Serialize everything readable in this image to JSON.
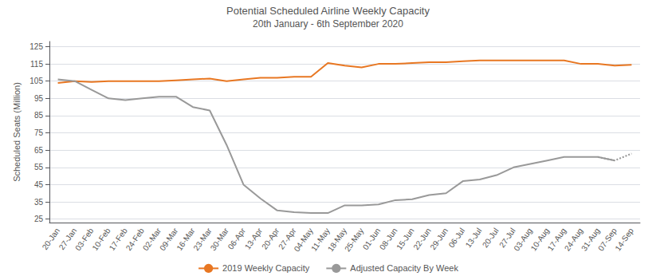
{
  "chart_data": {
    "type": "line",
    "title": "Potential Scheduled Airline Weekly Capacity",
    "subtitle": "20th January - 6th September 2020",
    "ylabel": "Scheduled Seats (Million)",
    "categories": [
      "20-Jan",
      "27-Jan",
      "03-Feb",
      "10-Feb",
      "17-Feb",
      "24-Feb",
      "02-Mar",
      "09-Mar",
      "16-Mar",
      "23-Mar",
      "30-Mar",
      "06-Apr",
      "13-Apr",
      "20-Apr",
      "27-Apr",
      "04-May",
      "11-May",
      "18-May",
      "25-May",
      "01-Jun",
      "08-Jun",
      "15-Jun",
      "22-Jun",
      "29-Jun",
      "06-Jul",
      "13-Jul",
      "20-Jul",
      "27-Jul",
      "03-Aug",
      "10-Aug",
      "17-Aug",
      "24-Aug",
      "31-Aug",
      "07-Sep",
      "14-Sep"
    ],
    "series": [
      {
        "name": "2019 Weekly Capacity",
        "color": "#E87722",
        "line_style": "solid",
        "values": [
          104,
          105,
          104.5,
          105,
          105,
          105,
          105,
          105.5,
          106,
          106.5,
          105,
          106,
          107,
          107,
          107.5,
          107.5,
          115.5,
          114,
          113,
          115,
          115,
          115.5,
          116,
          116,
          116.5,
          117,
          117,
          117,
          117,
          117,
          117,
          115,
          115,
          114,
          114.5
        ]
      },
      {
        "name": "Adjusted Capacity By Week",
        "color": "#999999",
        "line_style": "solid",
        "values": [
          106,
          105,
          100,
          95,
          94,
          95,
          96,
          96,
          90,
          88,
          68,
          45,
          37,
          30,
          29,
          28.5,
          28.5,
          33,
          33,
          33.5,
          36,
          36.5,
          39,
          40,
          47,
          48,
          50.5,
          55,
          57,
          59,
          61,
          61,
          61,
          59,
          null
        ]
      },
      {
        "color": "#999999",
        "line_style": "dotted",
        "values": [
          null,
          null,
          null,
          null,
          null,
          null,
          null,
          null,
          null,
          null,
          null,
          null,
          null,
          null,
          null,
          null,
          null,
          null,
          null,
          null,
          null,
          null,
          null,
          null,
          null,
          null,
          null,
          null,
          null,
          null,
          null,
          null,
          61,
          59,
          63
        ]
      }
    ],
    "ylim": [
      23,
      128
    ],
    "yticks": [
      25,
      35,
      45,
      55,
      65,
      75,
      85,
      95,
      105,
      115,
      125
    ],
    "grid": true,
    "legend": "bottom"
  }
}
